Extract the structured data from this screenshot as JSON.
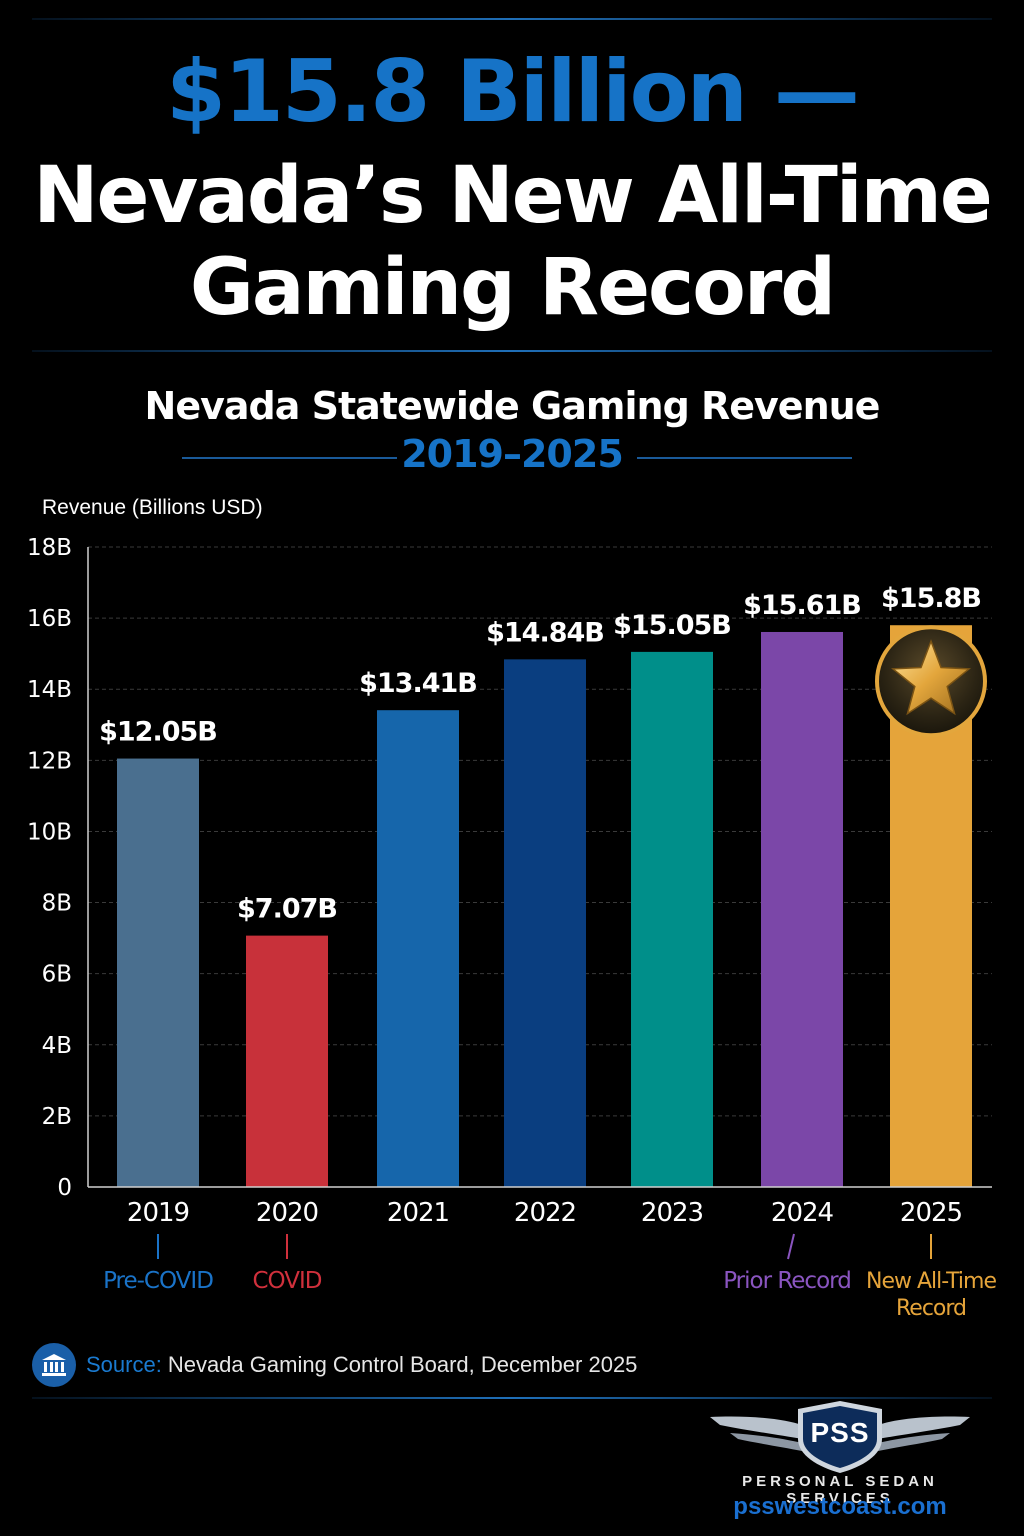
{
  "header": {
    "headline_line1": "$15.8 Billion —",
    "headline_line2": "Nevada’s New All-Time",
    "headline_line3": "Gaming Record"
  },
  "subtitle": {
    "title": "Nevada Statewide Gaming Revenue",
    "range": "2019–2025"
  },
  "chart_data": {
    "type": "bar",
    "title": "Nevada Statewide Gaming Revenue",
    "subtitle": "2019–2025",
    "ylabel": "Revenue (Billions USD)",
    "xlabel": "",
    "ylim": [
      0,
      18
    ],
    "yticks": [
      0,
      2,
      4,
      6,
      8,
      10,
      12,
      14,
      16,
      18
    ],
    "ytick_labels": [
      "0",
      "2B",
      "4B",
      "6B",
      "8B",
      "10B",
      "12B",
      "14B",
      "16B",
      "18B"
    ],
    "grid": true,
    "categories": [
      "2019",
      "2020",
      "2021",
      "2022",
      "2023",
      "2024",
      "2025"
    ],
    "values": [
      12.05,
      7.07,
      13.41,
      14.84,
      15.05,
      15.61,
      15.8
    ],
    "data_labels": [
      "$12.05B",
      "$7.07B",
      "$13.41B",
      "$14.84B",
      "$15.05B",
      "$15.61B",
      "$15.8B"
    ],
    "colors": [
      "#4a6f8f",
      "#c8313a",
      "#1666ab",
      "#0a3e80",
      "#008f8a",
      "#7b47a8",
      "#e5a43a"
    ],
    "annotations": [
      {
        "category": "2019",
        "lines": [
          "Pre-COVID"
        ],
        "color": "#1a73c8"
      },
      {
        "category": "2020",
        "lines": [
          "COVID"
        ],
        "color": "#d0303c"
      },
      {
        "category": "2024",
        "lines": [
          "Prior Record"
        ],
        "color": "#8a55c0"
      },
      {
        "category": "2025",
        "lines": [
          "New All-Time",
          "Record"
        ],
        "color": "#e5a43a"
      }
    ],
    "highlight": {
      "category": "2025",
      "icon": "gold-star-icon"
    }
  },
  "footer": {
    "source_label": "Source:",
    "source_text": "Nevada Gaming Control Board, December 2025",
    "source_icon": "bank-icon",
    "logo_text": "PSS",
    "brand_name": "PERSONAL SEDAN SERVICES",
    "brand_url": "psswestcoast.com"
  }
}
